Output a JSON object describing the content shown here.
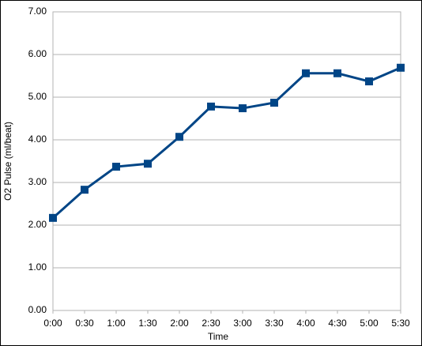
{
  "chart_data": {
    "type": "line",
    "x_label": "Time",
    "y_label": "O2 Pulse (ml/beat)",
    "categories": [
      "0:00",
      "0:30",
      "1:00",
      "1:30",
      "2:00",
      "2:30",
      "3:00",
      "3:30",
      "4:00",
      "4:30",
      "5:00",
      "5:30"
    ],
    "series": [
      {
        "color": "#004586",
        "values": [
          2.17,
          2.83,
          3.37,
          3.44,
          4.07,
          4.78,
          4.74,
          4.87,
          5.56,
          5.56,
          5.37,
          5.69
        ]
      }
    ],
    "ylim": [
      0,
      7
    ],
    "yticks": [
      {
        "value": 0,
        "label": "0.00"
      },
      {
        "value": 1,
        "label": "1.00"
      },
      {
        "value": 2,
        "label": "2.00"
      },
      {
        "value": 3,
        "label": "3.00"
      },
      {
        "value": 4,
        "label": "4.00"
      },
      {
        "value": 5,
        "label": "5.00"
      },
      {
        "value": 6,
        "label": "6.00"
      },
      {
        "value": 7,
        "label": "7.00"
      }
    ],
    "grid": true
  }
}
